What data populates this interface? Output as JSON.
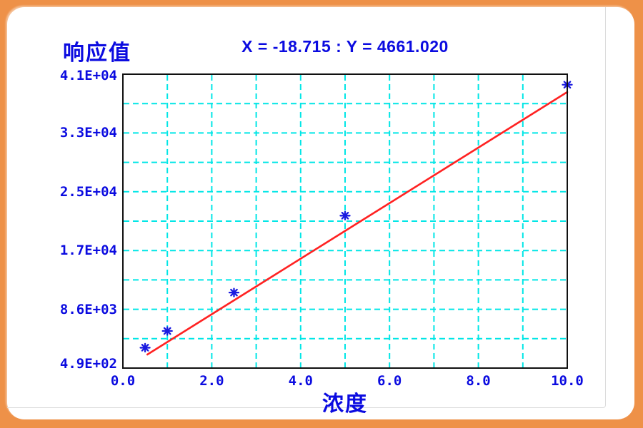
{
  "window": {
    "frame_color": "#EE9148",
    "card_color": "#FFFFFF"
  },
  "chart_data": {
    "type": "scatter",
    "title": "X = -18.715 : Y = 4661.020",
    "y_axis_title": "响应值",
    "x_axis_title": "浓度",
    "xlim": [
      0,
      10
    ],
    "ylim": [
      490,
      41000
    ],
    "x_tick_labels": [
      "0.0",
      "2.0",
      "4.0",
      "6.0",
      "8.0",
      "10.0"
    ],
    "x_tick_values": [
      0,
      2,
      4,
      6,
      8,
      10
    ],
    "y_tick_labels": [
      "4.1E+04",
      "3.3E+04",
      "2.5E+04",
      "1.7E+04",
      "8.6E+03",
      "4.9E+02"
    ],
    "y_tick_values": [
      41000,
      32898,
      24796,
      16694,
      8592,
      490
    ],
    "x_minor_divisions": 10,
    "y_minor_divisions": 10,
    "grid": {
      "style": "dashed",
      "on": true
    },
    "points": [
      {
        "x": 0.5,
        "y": 3300
      },
      {
        "x": 1.0,
        "y": 5600
      },
      {
        "x": 2.5,
        "y": 10900
      },
      {
        "x": 5.0,
        "y": 21500
      },
      {
        "x": 10.0,
        "y": 39550
      }
    ],
    "fit_line": {
      "x1": 0.55,
      "y1": 2360,
      "x2": 10.0,
      "y2": 38540
    },
    "colors": {
      "text": "#0B0BE0",
      "grid": "#00E6E6",
      "fit_line": "#FF2222",
      "marker": "#1A1AE0",
      "frame": "#101010",
      "plot_background": "#FFFFFF"
    },
    "marker_shape": "asterisk",
    "legend": "none"
  }
}
